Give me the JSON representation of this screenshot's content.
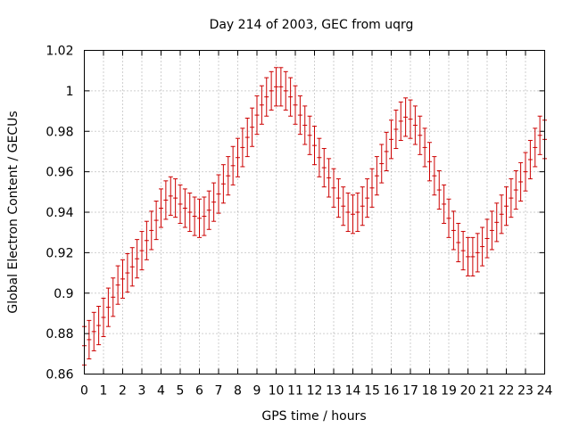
{
  "chart_data": {
    "type": "scatter",
    "title": "Day 214 of 2003, GEC from uqrg",
    "xlabel": "GPS time / hours",
    "ylabel": "Global Electron Content / GECUs",
    "xlim": [
      0,
      24
    ],
    "ylim": [
      0.86,
      1.02
    ],
    "xticks": [
      0,
      1,
      2,
      3,
      4,
      5,
      6,
      7,
      8,
      9,
      10,
      11,
      12,
      13,
      14,
      15,
      16,
      17,
      18,
      19,
      20,
      21,
      22,
      23,
      24
    ],
    "yticks": [
      0.86,
      0.88,
      0.9,
      0.92,
      0.94,
      0.96,
      0.98,
      1,
      1.02
    ],
    "ytick_labels": [
      "0.86",
      "0.88",
      "0.9",
      "0.92",
      "0.94",
      "0.96",
      "0.98",
      "1",
      "1.02"
    ],
    "grid": true,
    "error_color": "#cc0000",
    "error_bar": 0.0095,
    "x": [
      0,
      0.25,
      0.5,
      0.75,
      1,
      1.25,
      1.5,
      1.75,
      2,
      2.25,
      2.5,
      2.75,
      3,
      3.25,
      3.5,
      3.75,
      4,
      4.25,
      4.5,
      4.75,
      5,
      5.25,
      5.5,
      5.75,
      6,
      6.25,
      6.5,
      6.75,
      7,
      7.25,
      7.5,
      7.75,
      8,
      8.25,
      8.5,
      8.75,
      9,
      9.25,
      9.5,
      9.75,
      10,
      10.25,
      10.5,
      10.75,
      11,
      11.25,
      11.5,
      11.75,
      12,
      12.25,
      12.5,
      12.75,
      13,
      13.25,
      13.5,
      13.75,
      14,
      14.25,
      14.5,
      14.75,
      15,
      15.25,
      15.5,
      15.75,
      16,
      16.25,
      16.5,
      16.75,
      17,
      17.25,
      17.5,
      17.75,
      18,
      18.25,
      18.5,
      18.75,
      19,
      19.25,
      19.5,
      19.75,
      20,
      20.25,
      20.5,
      20.75,
      21,
      21.25,
      21.5,
      21.75,
      22,
      22.25,
      22.5,
      22.75,
      23,
      23.25,
      23.5,
      23.75,
      24
    ],
    "y": [
      0.874,
      0.877,
      0.881,
      0.884,
      0.888,
      0.893,
      0.898,
      0.904,
      0.907,
      0.91,
      0.913,
      0.917,
      0.921,
      0.926,
      0.931,
      0.936,
      0.942,
      0.946,
      0.948,
      0.947,
      0.944,
      0.942,
      0.94,
      0.938,
      0.937,
      0.938,
      0.941,
      0.945,
      0.949,
      0.954,
      0.958,
      0.963,
      0.967,
      0.972,
      0.977,
      0.982,
      0.988,
      0.993,
      0.997,
      1.0,
      1.002,
      1.002,
      1.0,
      0.997,
      0.993,
      0.988,
      0.983,
      0.978,
      0.973,
      0.967,
      0.962,
      0.957,
      0.952,
      0.947,
      0.943,
      0.94,
      0.939,
      0.94,
      0.943,
      0.947,
      0.952,
      0.958,
      0.964,
      0.97,
      0.976,
      0.981,
      0.985,
      0.987,
      0.986,
      0.983,
      0.978,
      0.972,
      0.965,
      0.958,
      0.951,
      0.944,
      0.937,
      0.931,
      0.925,
      0.921,
      0.918,
      0.918,
      0.92,
      0.923,
      0.927,
      0.931,
      0.935,
      0.939,
      0.943,
      0.947,
      0.951,
      0.955,
      0.96,
      0.966,
      0.972,
      0.978,
      0.976
    ]
  }
}
